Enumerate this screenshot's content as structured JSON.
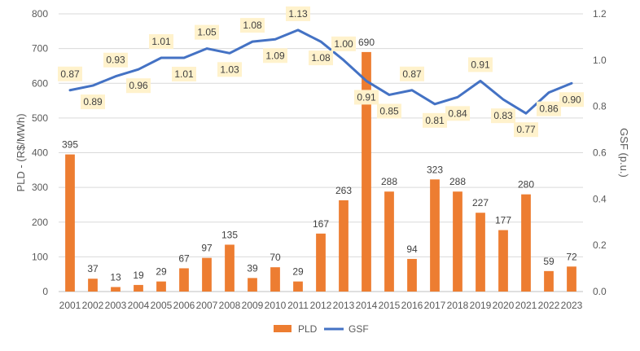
{
  "chart_data": {
    "type": "bar+line",
    "categories": [
      "2001",
      "2002",
      "2003",
      "2004",
      "2005",
      "2006",
      "2007",
      "2008",
      "2009",
      "2010",
      "2011",
      "2012",
      "2013",
      "2014",
      "2015",
      "2016",
      "2017",
      "2018",
      "2019",
      "2020",
      "2021",
      "2022",
      "2023"
    ],
    "series": [
      {
        "name": "PLD",
        "type": "bar",
        "axis": "left",
        "color": "#ED7D31",
        "values": [
          395,
          37,
          13,
          19,
          29,
          67,
          97,
          135,
          39,
          70,
          29,
          167,
          263,
          690,
          288,
          94,
          323,
          288,
          227,
          177,
          280,
          59,
          72
        ],
        "labels": [
          "395",
          "37",
          "13",
          "19",
          "29",
          "67",
          "97",
          "135",
          "39",
          "70",
          "29",
          "167",
          "263",
          "690",
          "288",
          "94",
          "323",
          "288",
          "227",
          "177",
          "280",
          "59",
          "72"
        ]
      },
      {
        "name": "GSF",
        "type": "line",
        "axis": "right",
        "color": "#4472C4",
        "values": [
          0.87,
          0.89,
          0.93,
          0.96,
          1.01,
          1.01,
          1.05,
          1.03,
          1.08,
          1.09,
          1.13,
          1.08,
          1.0,
          0.91,
          0.85,
          0.87,
          0.81,
          0.84,
          0.91,
          0.83,
          0.77,
          0.86,
          0.9
        ],
        "labels": [
          "0.87",
          "0.89",
          "0.93",
          "0.96",
          "1.01",
          "1.01",
          "1.05",
          "1.03",
          "1.08",
          "1.09",
          "1.13",
          "1.08",
          "1.00",
          "0.91",
          "0.85",
          "0.87",
          "0.81",
          "0.84",
          "0.91",
          "0.83",
          "0.77",
          "0.86",
          "0.90"
        ]
      }
    ],
    "y_left": {
      "label": "PLD - (R$/MWh)",
      "min": 0,
      "max": 800,
      "ticks": [
        "0",
        "100",
        "200",
        "300",
        "400",
        "500",
        "600",
        "700",
        "800"
      ]
    },
    "y_right": {
      "label": "GSF (p.u.)",
      "min": 0,
      "max": 1.2,
      "ticks": [
        "0.0",
        "0.2",
        "0.4",
        "0.6",
        "0.8",
        "1.0",
        "1.2"
      ]
    },
    "label_box_color": "#FFF2CC",
    "legend": {
      "position": "bottom",
      "entries": [
        "PLD",
        "GSF"
      ]
    },
    "grid": true
  }
}
